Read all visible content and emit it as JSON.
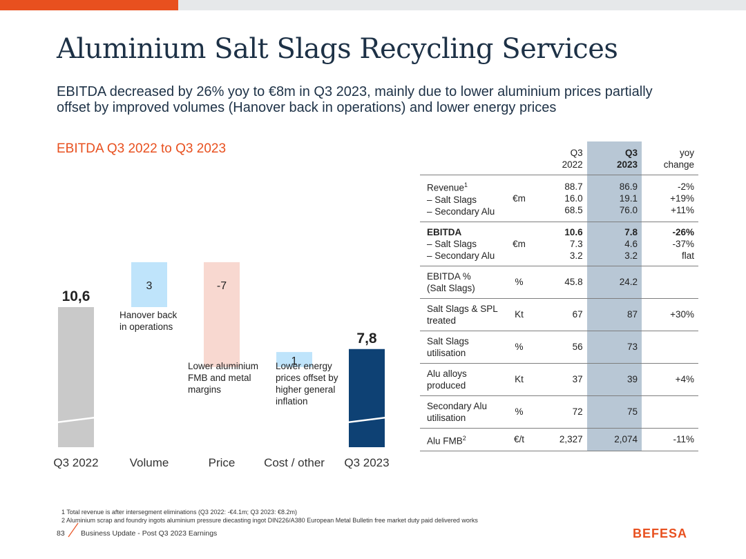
{
  "header": {
    "title": "Aluminium Salt Slags Recycling Services",
    "subtitle": "EBITDA decreased by 26% yoy to €8m in Q3 2023, mainly due to lower aluminium prices partially offset by improved volumes (Hanover back in operations) and lower energy prices",
    "section_title": "EBITDA Q3 2022 to Q3 2023"
  },
  "colors": {
    "accent": "#e8501f",
    "start_bar": "#c9c9c9",
    "increase": "#bfe4fb",
    "decrease": "#f8d8d0",
    "end_bar": "#0e4174",
    "highlight": "#b8c7d5"
  },
  "chart_data": {
    "type": "bar",
    "subtype": "waterfall",
    "title": "EBITDA Q3 2022 to Q3 2023",
    "categories": [
      "Q3 2022",
      "Volume",
      "Price",
      "Cost / other",
      "Q3 2023"
    ],
    "values": [
      10.6,
      3,
      -7,
      1,
      7.8
    ],
    "measure": [
      "total",
      "relative",
      "relative",
      "relative",
      "total"
    ],
    "labels": [
      "10,6",
      "3",
      "-7",
      "1",
      "7,8"
    ],
    "annotations": [
      "",
      "Hanover back\nin operations",
      "Lower aluminium\nFMB and metal\nmargins",
      "Lower energy\nprices offset by\nhigher general\ninflation",
      ""
    ],
    "axis_break": true
  },
  "kpi": {
    "headers": [
      "",
      "",
      "Q3\n2022",
      "Q3\n2023",
      "yoy\nchange"
    ],
    "rows": [
      {
        "metric": "Revenue",
        "sup": "1",
        "sub": "– Salt Slags\n– Secondary Alu",
        "unit": "€m",
        "q3_2022": "88.7\n16.0\n68.5",
        "q3_2023": "86.9\n19.1\n76.0",
        "yoy": "-2%\n+19%\n+11%",
        "bold": false
      },
      {
        "metric": "EBITDA",
        "sup": "",
        "sub": "– Salt Slags\n– Secondary Alu",
        "unit": "€m",
        "q3_2022": "10.6\n7.3\n3.2",
        "q3_2023": "7.8\n4.6\n3.2",
        "yoy": "-26%\n-37%\nflat",
        "bold": true
      },
      {
        "metric": "EBITDA %\n(Salt Slags)",
        "sup": "",
        "sub": "",
        "unit": "%",
        "q3_2022": "45.8",
        "q3_2023": "24.2",
        "yoy": "",
        "bold": false
      },
      {
        "metric": "Salt Slags & SPL\ntreated",
        "sup": "",
        "sub": "",
        "unit": "Kt",
        "q3_2022": "67",
        "q3_2023": "87",
        "yoy": "+30%",
        "bold": false
      },
      {
        "metric": "Salt Slags\nutilisation",
        "sup": "",
        "sub": "",
        "unit": "%",
        "q3_2022": "56",
        "q3_2023": "73",
        "yoy": "",
        "bold": false
      },
      {
        "metric": "Alu alloys\nproduced",
        "sup": "",
        "sub": "",
        "unit": "Kt",
        "q3_2022": "37",
        "q3_2023": "39",
        "yoy": "+4%",
        "bold": false
      },
      {
        "metric": "Secondary Alu\nutilisation",
        "sup": "",
        "sub": "",
        "unit": "%",
        "q3_2022": "72",
        "q3_2023": "75",
        "yoy": "",
        "bold": false
      },
      {
        "metric": "Alu FMB",
        "sup": "2",
        "sub": "",
        "unit": "€/t",
        "q3_2022": "2,327",
        "q3_2023": "2,074",
        "yoy": "-11%",
        "bold": false
      }
    ]
  },
  "footnotes": [
    "1  Total revenue is after intersegment eliminations (Q3 2022: -€4.1m; Q3 2023: €8.2m)",
    "2  Aluminium scrap and foundry ingots aluminium pressure diecasting ingot DIN226/A380 European Metal Bulletin free market duty paid delivered works"
  ],
  "footer": {
    "page_number": "83",
    "text": "Business Update - Post Q3 2023 Earnings",
    "logo": "BEFESA"
  }
}
